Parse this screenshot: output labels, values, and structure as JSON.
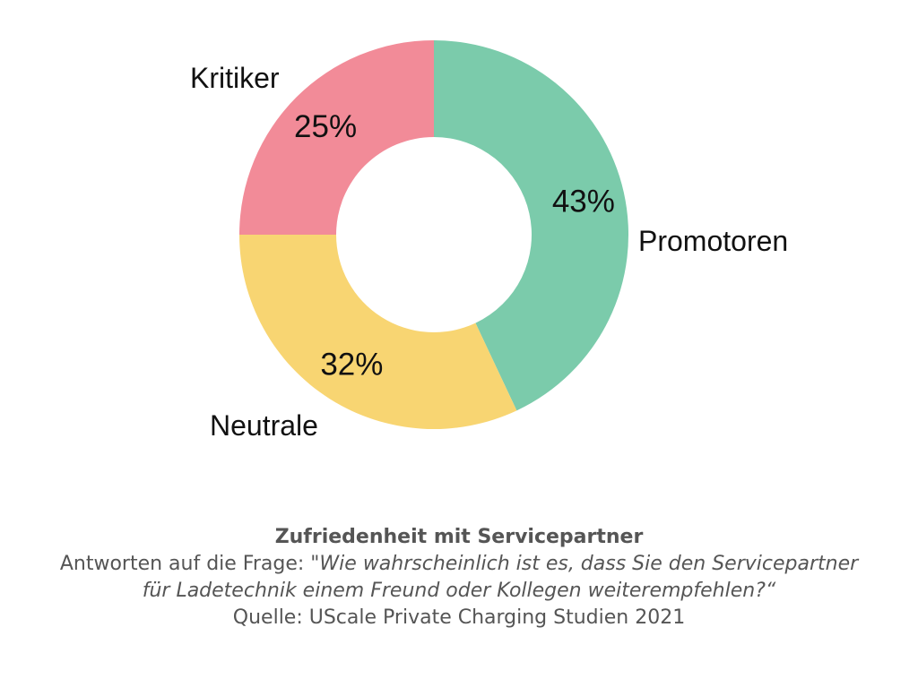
{
  "chart_data": {
    "type": "pie",
    "variant": "donut",
    "slices": [
      {
        "name": "Promotoren",
        "value": 43,
        "label": "43%",
        "color": "#7BCBAB"
      },
      {
        "name": "Neutrale",
        "value": 32,
        "label": "32%",
        "color": "#F8D572"
      },
      {
        "name": "Kritiker",
        "value": 25,
        "label": "25%",
        "color": "#F28B98"
      }
    ],
    "start": "top",
    "direction": "clockwise",
    "legend": "none"
  },
  "caption": {
    "title": "Zufriedenheit mit Servicepartner",
    "question_prefix": "Antworten auf die Frage: \"",
    "question_line1": "Wie wahrscheinlich ist es, dass Sie den Servicepartner",
    "question_line2": "für Ladetechnik einem Freund oder Kollegen weiterempfehlen?“",
    "source": "Quelle: UScale Private Charging Studien 2021"
  }
}
